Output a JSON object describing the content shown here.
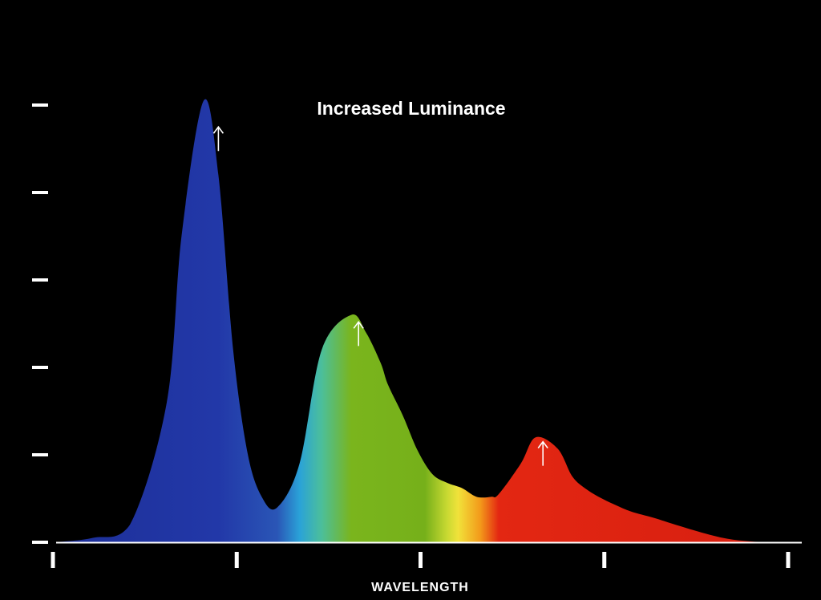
{
  "chart_data": {
    "type": "area",
    "title": "Increased Luminance",
    "xlabel": "WAVELENGTH",
    "ylabel": "",
    "x_ticks": 5,
    "y_ticks": 6,
    "xlim": [
      0,
      100
    ],
    "ylim": [
      0,
      5
    ],
    "grid": false,
    "legend": "none",
    "series": [
      {
        "x": [
          0,
          5,
          10,
          15,
          17,
          20,
          22,
          24,
          26,
          28,
          30,
          33,
          36,
          40,
          42,
          44,
          45,
          47,
          49,
          51,
          53,
          55,
          57,
          59,
          60,
          63,
          65,
          68,
          70,
          72,
          74,
          76,
          78,
          81,
          84,
          88,
          91,
          94,
          97,
          100
        ],
        "values": [
          0,
          0.05,
          0.2,
          1.6,
          3.5,
          5.05,
          4.2,
          2.2,
          1.0,
          0.5,
          0.4,
          0.9,
          2.2,
          2.6,
          2.4,
          2.05,
          1.8,
          1.45,
          1.05,
          0.78,
          0.68,
          0.62,
          0.52,
          0.52,
          0.55,
          0.9,
          1.2,
          1.07,
          0.75,
          0.6,
          0.5,
          0.42,
          0.35,
          0.28,
          0.2,
          0.1,
          0.04,
          0.01,
          0.0,
          0.0
        ]
      }
    ],
    "annotations": [
      {
        "type": "up-arrow",
        "x": 22,
        "y": 4.75,
        "color": "#ffffff"
      },
      {
        "type": "up-arrow",
        "x": 41,
        "y": 2.52,
        "color": "#ffffff"
      },
      {
        "type": "up-arrow",
        "x": 66,
        "y": 1.15,
        "color": "#ffffff"
      }
    ],
    "colors": {
      "background": "#000000",
      "axis": "#ffffff",
      "blue": "#2236a8",
      "cyan": "#2aa2d8",
      "green": "#7ab51d",
      "yellow": "#f1e23a",
      "orange": "#f39a1a",
      "red": "#e32712"
    }
  }
}
